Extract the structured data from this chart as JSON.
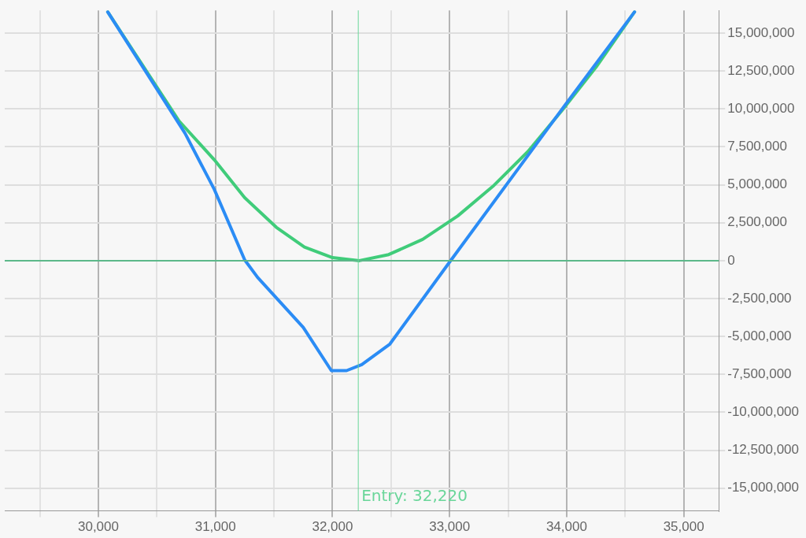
{
  "chart_data": {
    "type": "line",
    "xlim": [
      29200,
      35300
    ],
    "xticks": [
      {
        "value": 29500,
        "label": null
      },
      {
        "value": 30000,
        "label": "30,000"
      },
      {
        "value": 30500,
        "label": null
      },
      {
        "value": 31000,
        "label": "31,000"
      },
      {
        "value": 31500,
        "label": null
      },
      {
        "value": 32000,
        "label": "32,000"
      },
      {
        "value": 32500,
        "label": null
      },
      {
        "value": 33000,
        "label": "33,000"
      },
      {
        "value": 33500,
        "label": null
      },
      {
        "value": 34000,
        "label": "34,000"
      },
      {
        "value": 34500,
        "label": null
      },
      {
        "value": 35000,
        "label": "35,000"
      }
    ],
    "ylim": [
      -16500000,
      16500000
    ],
    "yticks": [
      {
        "value": -15000000,
        "label": "-15,000,000"
      },
      {
        "value": -12500000,
        "label": "-12,500,000"
      },
      {
        "value": -10000000,
        "label": "-10,000,000"
      },
      {
        "value": -7500000,
        "label": "-7,500,000"
      },
      {
        "value": -5000000,
        "label": "-5,000,000"
      },
      {
        "value": -2500000,
        "label": "-2,500,000"
      },
      0,
      {
        "value": 2500000,
        "label": "2,500,000"
      },
      {
        "value": 5000000,
        "label": "5,000,000"
      },
      {
        "value": 7500000,
        "label": "7,500,000"
      },
      {
        "value": 10000000,
        "label": "10,000,000"
      },
      {
        "value": 12500000,
        "label": "12,500,000"
      },
      {
        "value": 15000000,
        "label": "15,000,000"
      }
    ],
    "grid": true,
    "legend": false,
    "marker": "none",
    "line_style": "solid",
    "series": [
      {
        "color": "#2b8cf5",
        "x": [
          30080,
          30740,
          30990,
          31250,
          31360,
          31750,
          31990,
          32120,
          32250,
          32490,
          32990,
          33990,
          34580
        ],
        "values": [
          16400000,
          8400000,
          4700000,
          50000,
          -1100000,
          -4400000,
          -7250000,
          -7250000,
          -6850000,
          -5500000,
          -200000,
          10300000,
          16400000
        ]
      },
      {
        "color": "#40cc7a",
        "x": [
          30080,
          30690,
          30990,
          31250,
          31520,
          31760,
          32000,
          32230,
          32480,
          32770,
          33070,
          33370,
          33670,
          33960,
          34260,
          34580
        ],
        "values": [
          16400000,
          9200000,
          6650000,
          4150000,
          2200000,
          900000,
          200000,
          0,
          400000,
          1400000,
          2950000,
          4900000,
          7200000,
          9900000,
          12850000,
          16400000
        ]
      }
    ],
    "ref_lines": [
      {
        "axis": "y",
        "value": 0,
        "color": "#5cb88a"
      },
      {
        "axis": "x",
        "value": 32220,
        "label": "Entry: 32,220",
        "color": "#6ad69a"
      }
    ]
  }
}
